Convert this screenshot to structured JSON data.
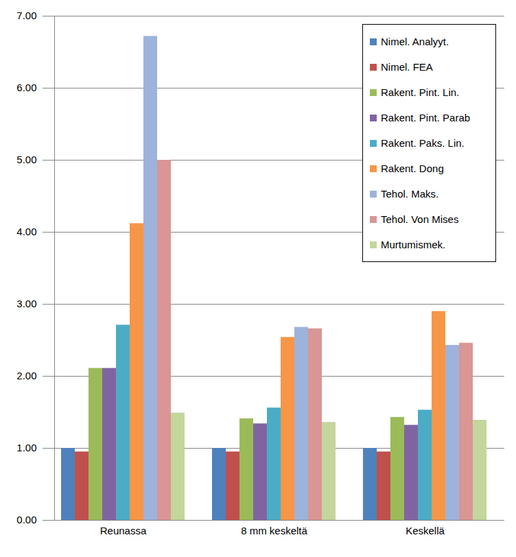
{
  "chart_data": {
    "type": "bar",
    "categories": [
      "Reunassa",
      "8 mm keskeltä",
      "Keskellä"
    ],
    "series": [
      {
        "name": "Nimel. Analyyt.",
        "color": "#4F81BD",
        "values": [
          1.0,
          1.0,
          1.0
        ]
      },
      {
        "name": "Nimel. FEA",
        "color": "#C0504D",
        "values": [
          0.95,
          0.95,
          0.95
        ]
      },
      {
        "name": "Rakent. Pint. Lin.",
        "color": "#9BBB59",
        "values": [
          2.11,
          1.41,
          1.43
        ]
      },
      {
        "name": "Rakent. Pint. Parab",
        "color": "#8064A2",
        "values": [
          2.11,
          1.34,
          1.32
        ]
      },
      {
        "name": "Rakent. Paks. Lin.",
        "color": "#4BACC6",
        "values": [
          2.71,
          1.56,
          1.53
        ]
      },
      {
        "name": "Rakent. Dong",
        "color": "#F79646",
        "values": [
          4.12,
          2.54,
          2.9
        ]
      },
      {
        "name": "Tehol. Maks.",
        "color": "#9DB3DB",
        "values": [
          6.72,
          2.68,
          2.43
        ]
      },
      {
        "name": "Tehol. Von Mises",
        "color": "#D99694",
        "values": [
          5.0,
          2.66,
          2.46
        ]
      },
      {
        "name": "Murtumismek.",
        "color": "#C3D69B",
        "values": [
          1.49,
          1.36,
          1.39
        ]
      }
    ],
    "ylim": [
      0,
      7
    ],
    "yticks": [
      {
        "value": 0,
        "label": "0.00"
      },
      {
        "value": 1,
        "label": "1.00"
      },
      {
        "value": 2,
        "label": "2.00"
      },
      {
        "value": 3,
        "label": "3.00"
      },
      {
        "value": 4,
        "label": "4.00"
      },
      {
        "value": 5,
        "label": "5.00"
      },
      {
        "value": 6,
        "label": "6.00"
      },
      {
        "value": 7,
        "label": "7.00"
      }
    ],
    "grid": true,
    "legend": "top-right"
  }
}
